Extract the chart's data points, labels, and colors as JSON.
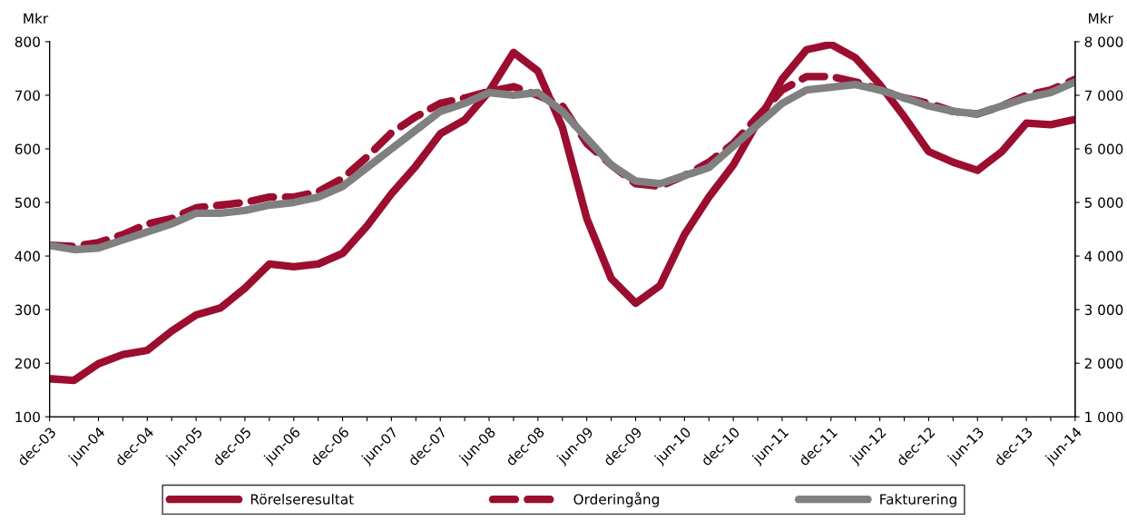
{
  "chart_data": {
    "type": "line",
    "ylabel": "Mkr",
    "y2label": "Mkr",
    "categories": [
      "dec-03",
      null,
      "jun-04",
      null,
      "dec-04",
      null,
      "jun-05",
      null,
      "dec-05",
      null,
      "jun-06",
      null,
      "dec-06",
      null,
      "jun-07",
      null,
      "dec-07",
      null,
      "jun-08",
      null,
      "dec-08",
      null,
      "jun-09",
      null,
      "dec-09",
      null,
      "jun-10",
      null,
      "dec-10",
      null,
      "jun-11",
      null,
      "dec-11",
      null,
      "jun-12",
      null,
      "dec-12",
      null,
      "jun-13",
      null,
      "dec-13",
      null,
      "jun-14"
    ],
    "ylim": [
      100,
      800
    ],
    "yticks": [
      100,
      200,
      300,
      400,
      500,
      600,
      700,
      800
    ],
    "y2lim": [
      1000,
      8000
    ],
    "y2ticks": [
      {
        "value": 1000,
        "label": "1 000"
      },
      {
        "value": 2000,
        "label": "2 000"
      },
      {
        "value": 3000,
        "label": "3 000"
      },
      {
        "value": 4000,
        "label": "4 000"
      },
      {
        "value": 5000,
        "label": "5 000"
      },
      {
        "value": 6000,
        "label": "6 000"
      },
      {
        "value": 7000,
        "label": "7 000"
      },
      {
        "value": 8000,
        "label": "8 000"
      }
    ],
    "grid": false,
    "legend": "bottom",
    "marker": "none",
    "series": [
      {
        "name": "Rörelseresultat",
        "color": "#9b0e30",
        "line_style": "solid",
        "values": [
          171,
          168,
          199,
          216,
          224,
          260,
          290,
          303,
          340,
          385,
          380,
          385,
          405,
          456,
          516,
          568,
          628,
          654,
          707,
          780,
          745,
          640,
          470,
          358,
          312,
          345,
          440,
          510,
          570,
          650,
          730,
          785,
          795,
          770,
          720,
          660,
          595,
          575,
          560,
          595,
          648,
          645,
          655
        ]
      },
      {
        "name": "Orderingång",
        "color": "#9b0e30",
        "line_style": "dashed",
        "axis": "y2",
        "values": [
          4200,
          4180,
          4250,
          4400,
          4600,
          4700,
          4900,
          4950,
          5000,
          5100,
          5100,
          5200,
          5450,
          5850,
          6300,
          6600,
          6850,
          6950,
          7070,
          7160,
          7000,
          6800,
          6100,
          5700,
          5350,
          5300,
          5500,
          5750,
          6100,
          6600,
          7100,
          7350,
          7350,
          7250,
          7100,
          6950,
          6850,
          6700,
          6650,
          6800,
          7000,
          7100,
          7300
        ]
      },
      {
        "name": "Fakturering",
        "color": "#808080",
        "line_style": "solid",
        "axis": "y2",
        "values": [
          4200,
          4120,
          4150,
          4300,
          4450,
          4600,
          4800,
          4800,
          4850,
          4950,
          5000,
          5100,
          5300,
          5650,
          6000,
          6350,
          6700,
          6850,
          7050,
          7000,
          7050,
          6700,
          6200,
          5700,
          5400,
          5350,
          5500,
          5650,
          6050,
          6450,
          6850,
          7100,
          7150,
          7200,
          7100,
          6950,
          6800,
          6700,
          6650,
          6800,
          6950,
          7050,
          7250
        ]
      }
    ]
  }
}
